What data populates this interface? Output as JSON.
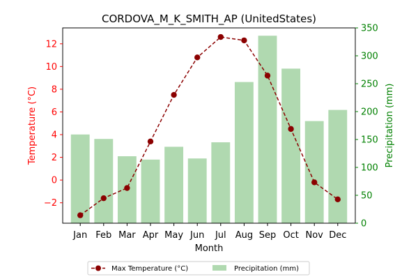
{
  "chart_data": {
    "type": "bar+line",
    "title": "CORDOVA_M_K_SMITH_AP (UnitedStates)",
    "xlabel": "Month",
    "ylabel_left": "Temperature (°C)",
    "ylabel_right": "Precipitation (mm)",
    "categories": [
      "Jan",
      "Feb",
      "Mar",
      "Apr",
      "May",
      "Jun",
      "Jul",
      "Aug",
      "Sep",
      "Oct",
      "Nov",
      "Dec"
    ],
    "left_axis": {
      "ylim": [
        -3.8,
        13.4
      ],
      "ticks": [
        -2,
        0,
        2,
        4,
        6,
        8,
        10,
        12
      ],
      "color": "#ff0000"
    },
    "right_axis": {
      "ylim": [
        0,
        350
      ],
      "ticks": [
        0,
        50,
        100,
        150,
        200,
        250,
        300,
        350
      ],
      "color": "#008000"
    },
    "series": [
      {
        "name": "Max Temperature (°C)",
        "type": "line",
        "axis": "left",
        "color": "#8b0000",
        "linestyle": "dashed",
        "marker": "circle",
        "values": [
          -3.1,
          -1.6,
          -0.7,
          3.4,
          7.5,
          10.8,
          12.6,
          12.3,
          9.2,
          4.5,
          -0.2,
          -1.7
        ]
      },
      {
        "name": "Precipitation (mm)",
        "type": "bar",
        "axis": "right",
        "color": "#b0d9b0",
        "values": [
          159,
          151,
          120,
          114,
          137,
          116,
          145,
          253,
          336,
          277,
          183,
          203
        ]
      }
    ],
    "legend": {
      "placement": "bottom-center",
      "columns": 2
    }
  }
}
